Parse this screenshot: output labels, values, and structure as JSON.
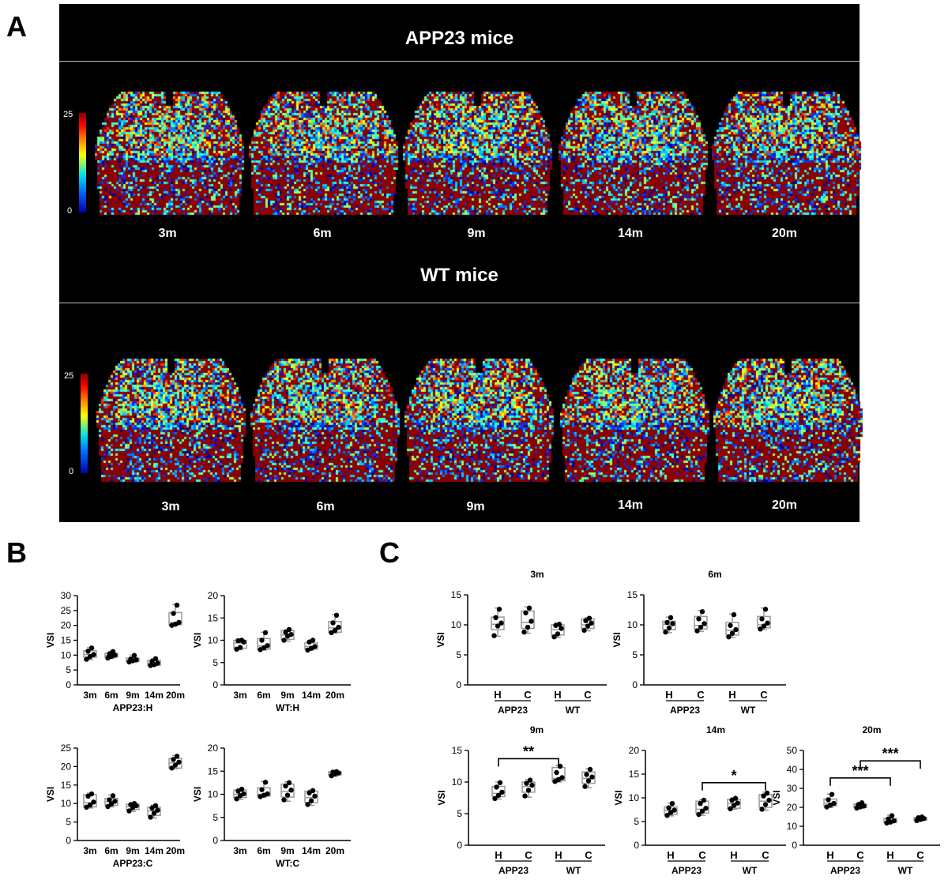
{
  "panel_labels": {
    "a": "A",
    "b": "B",
    "c": "C"
  },
  "panel_a": {
    "groups": [
      {
        "title": "APP23 mice",
        "ages": [
          "3m",
          "6m",
          "9m",
          "14m",
          "20m"
        ]
      },
      {
        "title": "WT mice",
        "ages": [
          "3m",
          "6m",
          "9m",
          "14m",
          "20m"
        ]
      }
    ],
    "colorbar": {
      "max_label": "25",
      "min_label": "0"
    },
    "colors": {
      "background": "#000000",
      "dark_red": "#8b0000",
      "blue": "#0000cc"
    }
  },
  "chart_data": [
    {
      "type": "box",
      "id": "b1",
      "ylabel": "VSI",
      "xlabel": "APP23:H",
      "ylim": [
        0,
        30
      ],
      "yticks": [
        0,
        5,
        10,
        15,
        20,
        25,
        30
      ],
      "categories": [
        "3m",
        "6m",
        "9m",
        "14m",
        "20m"
      ],
      "boxes": [
        {
          "q1": 9.3,
          "median": 10.2,
          "q3": 11.5,
          "min": 8.5,
          "max": 12.5,
          "points": [
            8.6,
            9.5,
            10.2,
            11.3,
            12.4
          ]
        },
        {
          "q1": 9.3,
          "median": 9.9,
          "q3": 10.6,
          "min": 8.9,
          "max": 11.3,
          "points": [
            9.0,
            9.6,
            10.0,
            10.4,
            11.2
          ]
        },
        {
          "q1": 7.9,
          "median": 8.4,
          "q3": 9.0,
          "min": 7.6,
          "max": 10.0,
          "points": [
            7.7,
            8.1,
            8.4,
            8.7,
            9.9
          ]
        },
        {
          "q1": 6.6,
          "median": 7.3,
          "q3": 8.3,
          "min": 6.4,
          "max": 8.9,
          "points": [
            6.5,
            6.8,
            7.3,
            7.9,
            8.8
          ]
        },
        {
          "q1": 20.2,
          "median": 21.0,
          "q3": 24.3,
          "min": 19.9,
          "max": 27.0,
          "points": [
            20.0,
            20.4,
            21.0,
            24.0,
            26.8
          ]
        }
      ]
    },
    {
      "type": "box",
      "id": "b2",
      "ylabel": "VSI",
      "xlabel": "WT:H",
      "ylim": [
        0,
        20
      ],
      "yticks": [
        0,
        5,
        10,
        15,
        20
      ],
      "categories": [
        "3m",
        "6m",
        "9m",
        "14m",
        "20m"
      ],
      "boxes": [
        {
          "q1": 8.2,
          "median": 9.4,
          "q3": 10.0,
          "min": 7.9,
          "max": 10.1,
          "points": [
            8.0,
            8.4,
            9.6,
            9.9,
            10.0
          ]
        },
        {
          "q1": 8.0,
          "median": 8.7,
          "q3": 10.4,
          "min": 7.8,
          "max": 11.8,
          "points": [
            7.9,
            8.3,
            8.8,
            10.0,
            11.7
          ]
        },
        {
          "q1": 10.2,
          "median": 11.2,
          "q3": 12.2,
          "min": 9.8,
          "max": 12.4,
          "points": [
            10.0,
            10.9,
            11.3,
            11.8,
            12.4
          ]
        },
        {
          "q1": 8.0,
          "median": 8.6,
          "q3": 9.4,
          "min": 7.8,
          "max": 10.0,
          "points": [
            7.8,
            8.2,
            8.6,
            9.6,
            10.0
          ]
        },
        {
          "q1": 11.8,
          "median": 12.8,
          "q3": 14.2,
          "min": 11.6,
          "max": 15.8,
          "points": [
            11.7,
            12.2,
            12.9,
            13.9,
            15.6
          ]
        }
      ]
    },
    {
      "type": "box",
      "id": "b3",
      "ylabel": "VSI",
      "xlabel": "APP23:C",
      "ylim": [
        0,
        25
      ],
      "yticks": [
        0,
        5,
        10,
        15,
        20,
        25
      ],
      "categories": [
        "3m",
        "6m",
        "9m",
        "14m",
        "20m"
      ],
      "boxes": [
        {
          "q1": 9.1,
          "median": 10.2,
          "q3": 12.4,
          "min": 8.8,
          "max": 12.8,
          "points": [
            9.0,
            9.6,
            10.4,
            12.0,
            12.6
          ]
        },
        {
          "q1": 9.5,
          "median": 10.5,
          "q3": 11.4,
          "min": 9.1,
          "max": 12.3,
          "points": [
            9.2,
            9.9,
            10.6,
            11.0,
            12.1
          ]
        },
        {
          "q1": 8.4,
          "median": 9.2,
          "q3": 9.8,
          "min": 7.9,
          "max": 10.1,
          "points": [
            8.0,
            8.9,
            9.4,
            9.7,
            10.0
          ]
        },
        {
          "q1": 6.8,
          "median": 8.0,
          "q3": 9.0,
          "min": 6.1,
          "max": 9.6,
          "points": [
            6.3,
            7.4,
            8.2,
            8.8,
            9.4
          ]
        },
        {
          "q1": 19.6,
          "median": 21.0,
          "q3": 22.2,
          "min": 19.4,
          "max": 23.0,
          "points": [
            19.6,
            20.4,
            21.2,
            21.9,
            22.8
          ]
        }
      ]
    },
    {
      "type": "box",
      "id": "b4",
      "ylabel": "VSI",
      "xlabel": "WT:C",
      "ylim": [
        0,
        20
      ],
      "yticks": [
        0,
        5,
        10,
        15,
        20
      ],
      "categories": [
        "3m",
        "6m",
        "9m",
        "14m",
        "20m"
      ],
      "boxes": [
        {
          "q1": 9.3,
          "median": 10.0,
          "q3": 10.9,
          "min": 8.9,
          "max": 11.2,
          "points": [
            9.0,
            9.7,
            10.1,
            10.7,
            11.1
          ]
        },
        {
          "q1": 9.6,
          "median": 10.0,
          "q3": 11.4,
          "min": 9.4,
          "max": 12.8,
          "points": [
            9.5,
            9.8,
            10.1,
            11.0,
            12.6
          ]
        },
        {
          "q1": 9.4,
          "median": 10.6,
          "q3": 12.2,
          "min": 8.5,
          "max": 12.7,
          "points": [
            8.8,
            9.8,
            10.9,
            11.8,
            12.5
          ]
        },
        {
          "q1": 8.2,
          "median": 9.3,
          "q3": 10.7,
          "min": 7.6,
          "max": 10.9,
          "points": [
            7.8,
            8.6,
            9.6,
            10.3,
            10.8
          ]
        },
        {
          "q1": 14.2,
          "median": 14.6,
          "q3": 14.9,
          "min": 13.9,
          "max": 15.0,
          "points": [
            14.0,
            14.4,
            14.6,
            14.8,
            14.9
          ]
        }
      ]
    },
    {
      "type": "box",
      "id": "c1",
      "title": "3m",
      "ylabel": "VSI",
      "ylim": [
        0,
        15
      ],
      "yticks": [
        0,
        5,
        10,
        15
      ],
      "categories": [
        "H",
        "C",
        "H",
        "C"
      ],
      "group_labels": [
        "APP23",
        "WT"
      ],
      "boxes": [
        {
          "q1": 9.2,
          "median": 10.1,
          "q3": 11.3,
          "min": 8.1,
          "max": 12.8,
          "points": [
            8.2,
            9.8,
            10.3,
            11.2,
            12.6
          ]
        },
        {
          "q1": 9.4,
          "median": 10.4,
          "q3": 12.3,
          "min": 8.6,
          "max": 13.0,
          "points": [
            8.8,
            9.6,
            10.6,
            12.0,
            12.8
          ]
        },
        {
          "q1": 8.3,
          "median": 9.2,
          "q3": 10.0,
          "min": 7.9,
          "max": 10.3,
          "points": [
            8.0,
            8.5,
            9.4,
            9.9,
            10.1
          ]
        },
        {
          "q1": 9.4,
          "median": 10.0,
          "q3": 11.0,
          "min": 9.0,
          "max": 11.2,
          "points": [
            9.1,
            9.8,
            10.3,
            10.7,
            11.1
          ]
        }
      ],
      "comparisons": []
    },
    {
      "type": "box",
      "id": "c2",
      "title": "6m",
      "ylabel": "VSI",
      "ylim": [
        0,
        15
      ],
      "yticks": [
        0,
        5,
        10,
        15
      ],
      "categories": [
        "H",
        "C",
        "H",
        "C"
      ],
      "group_labels": [
        "APP23",
        "WT"
      ],
      "boxes": [
        {
          "q1": 9.2,
          "median": 10.1,
          "q3": 10.6,
          "min": 8.7,
          "max": 11.3,
          "points": [
            8.8,
            9.5,
            10.2,
            10.4,
            11.2
          ]
        },
        {
          "q1": 9.3,
          "median": 9.9,
          "q3": 11.4,
          "min": 8.9,
          "max": 12.4,
          "points": [
            9.0,
            9.6,
            10.2,
            11.0,
            12.2
          ]
        },
        {
          "q1": 8.3,
          "median": 9.1,
          "q3": 10.4,
          "min": 7.9,
          "max": 11.8,
          "points": [
            8.0,
            8.6,
            9.2,
            9.9,
            11.7
          ]
        },
        {
          "q1": 9.5,
          "median": 10.0,
          "q3": 11.4,
          "min": 9.2,
          "max": 12.8,
          "points": [
            9.3,
            9.8,
            10.3,
            11.0,
            12.6
          ]
        }
      ],
      "comparisons": []
    },
    {
      "type": "box",
      "id": "c3",
      "title": "9m",
      "ylabel": "VSI",
      "ylim": [
        0,
        15
      ],
      "yticks": [
        0,
        5,
        10,
        15
      ],
      "categories": [
        "H",
        "C",
        "H",
        "C"
      ],
      "group_labels": [
        "APP23",
        "WT"
      ],
      "boxes": [
        {
          "q1": 7.7,
          "median": 8.2,
          "q3": 9.3,
          "min": 7.3,
          "max": 10.0,
          "points": [
            7.4,
            7.9,
            8.4,
            9.2,
            9.9
          ]
        },
        {
          "q1": 8.4,
          "median": 9.3,
          "q3": 10.0,
          "min": 7.6,
          "max": 10.4,
          "points": [
            7.8,
            8.7,
            9.5,
            9.8,
            10.3
          ]
        },
        {
          "q1": 10.2,
          "median": 10.6,
          "q3": 12.3,
          "min": 10.0,
          "max": 12.6,
          "points": [
            10.1,
            10.4,
            10.7,
            11.5,
            12.5
          ]
        },
        {
          "q1": 9.8,
          "median": 10.6,
          "q3": 11.6,
          "min": 9.1,
          "max": 12.1,
          "points": [
            9.3,
            10.2,
            10.8,
            11.2,
            12.0
          ]
        }
      ],
      "comparisons": [
        {
          "from": 0,
          "to": 2,
          "y": 13.7,
          "label": "**"
        }
      ]
    },
    {
      "type": "box",
      "id": "c4",
      "title": "14m",
      "ylabel": "VSI",
      "ylim": [
        0,
        20
      ],
      "yticks": [
        0,
        5,
        10,
        15,
        20
      ],
      "categories": [
        "H",
        "C",
        "H",
        "C"
      ],
      "group_labels": [
        "APP23",
        "WT"
      ],
      "boxes": [
        {
          "q1": 6.5,
          "median": 7.3,
          "q3": 8.1,
          "min": 6.2,
          "max": 8.9,
          "points": [
            6.3,
            6.9,
            7.4,
            7.9,
            8.8
          ]
        },
        {
          "q1": 6.8,
          "median": 7.6,
          "q3": 9.3,
          "min": 6.3,
          "max": 9.6,
          "points": [
            6.5,
            7.2,
            7.8,
            8.8,
            9.5
          ]
        },
        {
          "q1": 7.8,
          "median": 8.8,
          "q3": 9.7,
          "min": 7.6,
          "max": 10.0,
          "points": [
            7.7,
            8.4,
            8.9,
            9.5,
            9.9
          ]
        },
        {
          "q1": 8.0,
          "median": 9.3,
          "q3": 10.7,
          "min": 7.4,
          "max": 11.2,
          "points": [
            7.6,
            8.6,
            9.5,
            10.4,
            11.0
          ]
        }
      ],
      "comparisons": [
        {
          "from": 1,
          "to": 3,
          "y": 13.2,
          "label": "*"
        }
      ]
    },
    {
      "type": "box",
      "id": "c5",
      "title": "20m",
      "ylabel": "VSI",
      "ylim": [
        0,
        50
      ],
      "yticks": [
        0,
        10,
        20,
        30,
        40,
        50
      ],
      "categories": [
        "H",
        "C",
        "H",
        "C"
      ],
      "group_labels": [
        "APP23",
        "WT"
      ],
      "boxes": [
        {
          "q1": 20.8,
          "median": 22.0,
          "q3": 24.4,
          "min": 19.9,
          "max": 27.0,
          "points": [
            20.2,
            21.2,
            22.1,
            24.0,
            26.8
          ]
        },
        {
          "q1": 19.9,
          "median": 20.6,
          "q3": 21.7,
          "min": 19.4,
          "max": 22.6,
          "points": [
            19.6,
            20.2,
            20.7,
            21.4,
            22.4
          ]
        },
        {
          "q1": 11.9,
          "median": 12.7,
          "q3": 14.1,
          "min": 11.6,
          "max": 15.8,
          "points": [
            11.7,
            12.2,
            12.9,
            13.9,
            15.6
          ]
        },
        {
          "q1": 13.2,
          "median": 13.9,
          "q3": 14.6,
          "min": 12.8,
          "max": 15.0,
          "points": [
            13.0,
            13.6,
            14.1,
            14.5,
            14.9
          ]
        }
      ],
      "comparisons": [
        {
          "from": 0,
          "to": 2,
          "y": 35.5,
          "label": "***"
        },
        {
          "from": 1,
          "to": 3,
          "y": 44.5,
          "label": "***"
        }
      ]
    }
  ]
}
